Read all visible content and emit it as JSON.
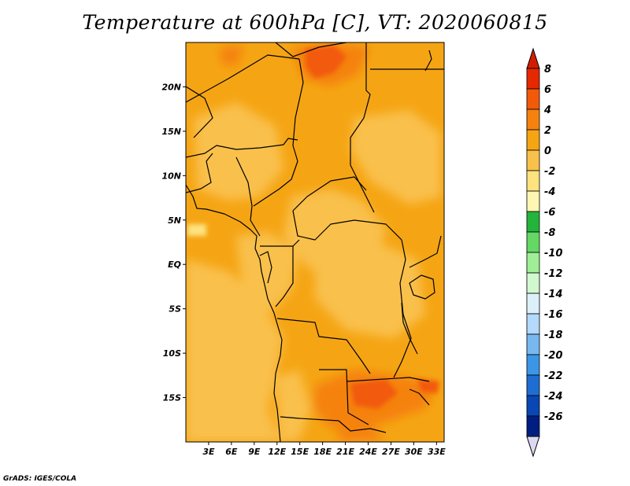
{
  "title": "Temperature at 600hPa [C], VT: 2020060815",
  "credit": "GrADS: IGES/COLA",
  "map": {
    "lat_range": [
      -20,
      25
    ],
    "lon_range": [
      0,
      34
    ],
    "lat_ticks": [
      {
        "v": 20,
        "label": "20N"
      },
      {
        "v": 15,
        "label": "15N"
      },
      {
        "v": 10,
        "label": "10N"
      },
      {
        "v": 5,
        "label": "5N"
      },
      {
        "v": 0,
        "label": "EQ"
      },
      {
        "v": -5,
        "label": "5S"
      },
      {
        "v": -10,
        "label": "10S"
      },
      {
        "v": -15,
        "label": "15S"
      }
    ],
    "lon_ticks": [
      {
        "v": 3,
        "label": "3E"
      },
      {
        "v": 6,
        "label": "6E"
      },
      {
        "v": 9,
        "label": "9E"
      },
      {
        "v": 12,
        "label": "12E"
      },
      {
        "v": 15,
        "label": "15E"
      },
      {
        "v": 18,
        "label": "18E"
      },
      {
        "v": 21,
        "label": "21E"
      },
      {
        "v": 24,
        "label": "24E"
      },
      {
        "v": 27,
        "label": "27E"
      },
      {
        "v": 30,
        "label": "30E"
      },
      {
        "v": 33,
        "label": "33E"
      }
    ]
  },
  "colorbar": {
    "labels": [
      "8",
      "6",
      "4",
      "2",
      "0",
      "-2",
      "-4",
      "-6",
      "-8",
      "-10",
      "-12",
      "-14",
      "-16",
      "-18",
      "-20",
      "-22",
      "-24",
      "-26"
    ],
    "colors": [
      "#e62800",
      "#f25a0a",
      "#f5820f",
      "#f5a514",
      "#f9c04b",
      "#fde27e",
      "#fdf7b1",
      "#24b43c",
      "#64d764",
      "#a0ee96",
      "#d2f8d0",
      "#dcf0fa",
      "#b4d9fa",
      "#78b8f0",
      "#3c96e6",
      "#1e6ed2",
      "#0a46b4",
      "#001e82"
    ],
    "top_color": "#d21e00",
    "bottom_color": "#dcd8f0"
  }
}
